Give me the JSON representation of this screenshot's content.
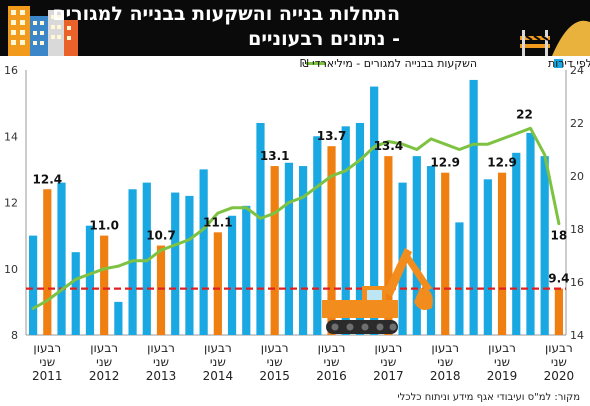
{
  "header": {
    "title_line1": "התחלות בנייה והשקעות בבנייה למגורים",
    "title_line2": "- נתונים רבעוניים"
  },
  "source": "מקור: למ\"ס ועיבודי אגף מידע וניתוח כלכלי",
  "colors": {
    "bar": "#1aa8e2",
    "highlight": "#f07f12",
    "line": "#7ec242",
    "reference": "#e02020",
    "header_bg": "#0a0a0a"
  },
  "chart_data": {
    "type": "bar",
    "legend_position": "top",
    "series": [
      {
        "name": "התחלות בנייה - אלפי דירות",
        "axis": "left",
        "type": "bar",
        "values": [
          11.0,
          12.4,
          12.6,
          10.5,
          11.3,
          11.0,
          9.0,
          12.4,
          12.6,
          10.7,
          12.3,
          12.2,
          13.0,
          11.1,
          11.6,
          11.9,
          14.4,
          13.1,
          13.2,
          13.1,
          14.0,
          13.7,
          14.3,
          14.4,
          15.5,
          13.4,
          12.6,
          13.4,
          13.1,
          12.9,
          11.4,
          15.7,
          12.7,
          12.9,
          13.5,
          14.1,
          13.4,
          9.4
        ],
        "highlight_indices": [
          1,
          5,
          9,
          13,
          17,
          21,
          25,
          29,
          33,
          37
        ]
      },
      {
        "name": "השקעות בבנייה למגורים - מיליארדי ₪",
        "axis": "right",
        "type": "line",
        "values": [
          15.0,
          15.3,
          15.7,
          16.1,
          16.3,
          16.5,
          16.6,
          16.8,
          16.8,
          17.2,
          17.4,
          17.6,
          18.0,
          18.6,
          18.8,
          18.8,
          18.4,
          18.6,
          19.0,
          19.2,
          19.6,
          20.0,
          20.2,
          20.6,
          21.1,
          21.3,
          21.2,
          21.0,
          21.4,
          21.2,
          21.0,
          21.2,
          21.2,
          21.4,
          21.6,
          21.8,
          20.8,
          18.2
        ]
      }
    ],
    "data_labels": [
      {
        "series": 0,
        "index": 1,
        "text": "12.4"
      },
      {
        "series": 0,
        "index": 5,
        "text": "11.0"
      },
      {
        "series": 0,
        "index": 9,
        "text": "10.7"
      },
      {
        "series": 0,
        "index": 13,
        "text": "11.1"
      },
      {
        "series": 0,
        "index": 17,
        "text": "13.1"
      },
      {
        "series": 0,
        "index": 21,
        "text": "13.7"
      },
      {
        "series": 0,
        "index": 25,
        "text": "13.4"
      },
      {
        "series": 0,
        "index": 29,
        "text": "12.9"
      },
      {
        "series": 0,
        "index": 33,
        "text": "12.9"
      },
      {
        "series": 0,
        "index": 37,
        "text": "9.4"
      },
      {
        "series": 1,
        "index": 35,
        "text": "22"
      },
      {
        "series": 1,
        "index": 37,
        "text": "18"
      }
    ],
    "reference_line": {
      "axis": "left",
      "value": 9.4
    },
    "year_labels": [
      {
        "label": "רבעון\nשני\n2011",
        "index": 1
      },
      {
        "label": "רבעון\nשני\n2012",
        "index": 5
      },
      {
        "label": "רבעון\nשני\n2013",
        "index": 9
      },
      {
        "label": "רבעון\nשני\n2014",
        "index": 13
      },
      {
        "label": "רבעון\nשני\n2015",
        "index": 17
      },
      {
        "label": "רבעון\nשני\n2016",
        "index": 21
      },
      {
        "label": "רבעון\nשני\n2017",
        "index": 25
      },
      {
        "label": "רבעון\nשני\n2018",
        "index": 29
      },
      {
        "label": "רבעון\nשני\n2019",
        "index": 33
      },
      {
        "label": "רבעון\nשני\n2020",
        "index": 37
      }
    ],
    "left_axis": {
      "min": 8,
      "max": 16,
      "ticks": [
        8,
        10,
        12,
        14,
        16
      ]
    },
    "right_axis": {
      "min": 14,
      "max": 24,
      "ticks": [
        14,
        16,
        18,
        20,
        22,
        24
      ]
    }
  }
}
